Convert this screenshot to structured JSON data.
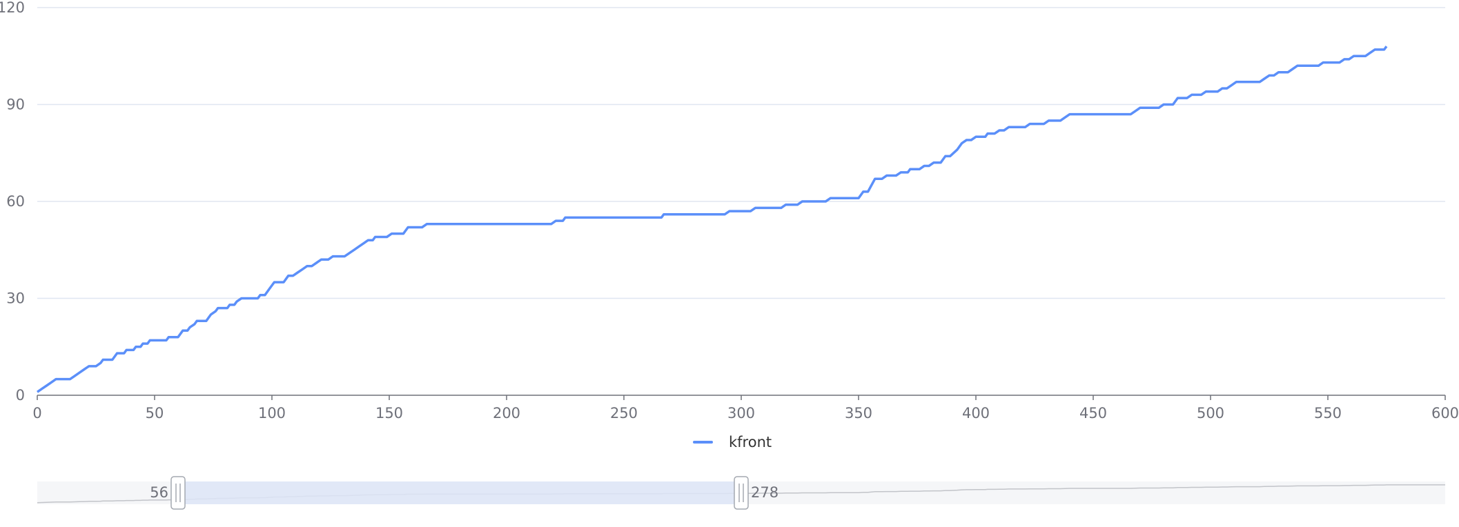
{
  "chart_data": {
    "type": "line",
    "title": "",
    "xlabel": "",
    "ylabel": "",
    "xlim": [
      0,
      600
    ],
    "ylim": [
      0,
      120
    ],
    "x_ticks": [
      0,
      50,
      100,
      150,
      200,
      250,
      300,
      350,
      400,
      450,
      500,
      550,
      600
    ],
    "y_ticks": [
      0,
      30,
      60,
      90,
      120
    ],
    "grid": "horizontal",
    "legend": {
      "position": "bottom-center"
    },
    "series": [
      {
        "name": "kfront",
        "color": "#5b8ff9",
        "points": [
          [
            0,
            1
          ],
          [
            2,
            2
          ],
          [
            4,
            3
          ],
          [
            6,
            4
          ],
          [
            8,
            5
          ],
          [
            14,
            5
          ],
          [
            16,
            6
          ],
          [
            18,
            7
          ],
          [
            20,
            8
          ],
          [
            22,
            9
          ],
          [
            25,
            9
          ],
          [
            27,
            10
          ],
          [
            28,
            11
          ],
          [
            32,
            11
          ],
          [
            34,
            13
          ],
          [
            37,
            13
          ],
          [
            38,
            14
          ],
          [
            41,
            14
          ],
          [
            42,
            15
          ],
          [
            44,
            15
          ],
          [
            45,
            16
          ],
          [
            47,
            16
          ],
          [
            48,
            17
          ],
          [
            55,
            17
          ],
          [
            56,
            18
          ],
          [
            60,
            18
          ],
          [
            62,
            20
          ],
          [
            64,
            20
          ],
          [
            65,
            21
          ],
          [
            67,
            22
          ],
          [
            68,
            23
          ],
          [
            72,
            23
          ],
          [
            74,
            25
          ],
          [
            76,
            26
          ],
          [
            77,
            27
          ],
          [
            81,
            27
          ],
          [
            82,
            28
          ],
          [
            84,
            28
          ],
          [
            85,
            29
          ],
          [
            87,
            30
          ],
          [
            94,
            30
          ],
          [
            95,
            31
          ],
          [
            97,
            31
          ],
          [
            99,
            33
          ],
          [
            101,
            35
          ],
          [
            105,
            35
          ],
          [
            107,
            37
          ],
          [
            109,
            37
          ],
          [
            111,
            38
          ],
          [
            113,
            39
          ],
          [
            115,
            40
          ],
          [
            117,
            40
          ],
          [
            119,
            41
          ],
          [
            121,
            42
          ],
          [
            124,
            42
          ],
          [
            126,
            43
          ],
          [
            131,
            43
          ],
          [
            133,
            44
          ],
          [
            135,
            45
          ],
          [
            137,
            46
          ],
          [
            139,
            47
          ],
          [
            141,
            48
          ],
          [
            143,
            48
          ],
          [
            144,
            49
          ],
          [
            149,
            49
          ],
          [
            151,
            50
          ],
          [
            156,
            50
          ],
          [
            158,
            52
          ],
          [
            164,
            52
          ],
          [
            166,
            53
          ],
          [
            219,
            53
          ],
          [
            221,
            54
          ],
          [
            224,
            54
          ],
          [
            225,
            55
          ],
          [
            266,
            55
          ],
          [
            267,
            56
          ],
          [
            293,
            56
          ],
          [
            295,
            57
          ],
          [
            304,
            57
          ],
          [
            306,
            58
          ],
          [
            317,
            58
          ],
          [
            319,
            59
          ],
          [
            324,
            59
          ],
          [
            326,
            60
          ],
          [
            336,
            60
          ],
          [
            338,
            61
          ],
          [
            350,
            61
          ],
          [
            352,
            63
          ],
          [
            354,
            63
          ],
          [
            357,
            67
          ],
          [
            360,
            67
          ],
          [
            362,
            68
          ],
          [
            366,
            68
          ],
          [
            368,
            69
          ],
          [
            371,
            69
          ],
          [
            372,
            70
          ],
          [
            376,
            70
          ],
          [
            378,
            71
          ],
          [
            380,
            71
          ],
          [
            382,
            72
          ],
          [
            385,
            72
          ],
          [
            387,
            74
          ],
          [
            389,
            74
          ],
          [
            392,
            76
          ],
          [
            394,
            78
          ],
          [
            396,
            79
          ],
          [
            398,
            79
          ],
          [
            400,
            80
          ],
          [
            404,
            80
          ],
          [
            405,
            81
          ],
          [
            408,
            81
          ],
          [
            410,
            82
          ],
          [
            412,
            82
          ],
          [
            414,
            83
          ],
          [
            421,
            83
          ],
          [
            423,
            84
          ],
          [
            429,
            84
          ],
          [
            431,
            85
          ],
          [
            436,
            85
          ],
          [
            438,
            86
          ],
          [
            440,
            87
          ],
          [
            466,
            87
          ],
          [
            468,
            88
          ],
          [
            470,
            89
          ],
          [
            478,
            89
          ],
          [
            480,
            90
          ],
          [
            484,
            90
          ],
          [
            486,
            92
          ],
          [
            490,
            92
          ],
          [
            492,
            93
          ],
          [
            496,
            93
          ],
          [
            498,
            94
          ],
          [
            503,
            94
          ],
          [
            505,
            95
          ],
          [
            507,
            95
          ],
          [
            509,
            96
          ],
          [
            511,
            97
          ],
          [
            521,
            97
          ],
          [
            523,
            98
          ],
          [
            525,
            99
          ],
          [
            527,
            99
          ],
          [
            529,
            100
          ],
          [
            533,
            100
          ],
          [
            535,
            101
          ],
          [
            537,
            102
          ],
          [
            546,
            102
          ],
          [
            548,
            103
          ],
          [
            555,
            103
          ],
          [
            557,
            104
          ],
          [
            559,
            104
          ],
          [
            561,
            105
          ],
          [
            566,
            105
          ],
          [
            568,
            106
          ],
          [
            570,
            107
          ],
          [
            574,
            107
          ],
          [
            575,
            108
          ]
        ]
      }
    ]
  },
  "data_zoom": {
    "start_label": "56",
    "end_label": "278",
    "start_fraction": 0.1,
    "end_fraction": 0.5,
    "selected_color": "#dde5f7",
    "track_color": "#f5f6f8"
  }
}
